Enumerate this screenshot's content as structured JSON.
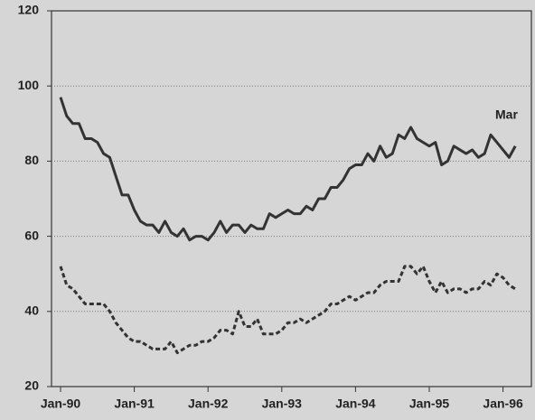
{
  "chart_data": {
    "type": "line",
    "categories": [
      "Jan-90",
      null,
      null,
      null,
      null,
      null,
      null,
      null,
      null,
      null,
      null,
      null,
      "Jan-91",
      null,
      null,
      null,
      null,
      null,
      null,
      null,
      null,
      null,
      null,
      null,
      "Jan-92",
      null,
      null,
      null,
      null,
      null,
      null,
      null,
      null,
      null,
      null,
      null,
      "Jan-93",
      null,
      null,
      null,
      null,
      null,
      null,
      null,
      null,
      null,
      null,
      null,
      "Jan-94",
      null,
      null,
      null,
      null,
      null,
      null,
      null,
      null,
      null,
      null,
      null,
      "Jan-95",
      null,
      null,
      null,
      null,
      null,
      null,
      null,
      null,
      null,
      null,
      null,
      "Jan-96",
      null,
      null
    ],
    "series": [
      {
        "color": "#333333",
        "style": "solid",
        "values": [
          97,
          92,
          90,
          90,
          86,
          86,
          85,
          82,
          81,
          76,
          71,
          71,
          67,
          64,
          63,
          63,
          61,
          64,
          61,
          60,
          62,
          59,
          60,
          60,
          59,
          61,
          64,
          61,
          63,
          63,
          61,
          63,
          62,
          62,
          66,
          65,
          66,
          67,
          66,
          66,
          68,
          67,
          70,
          70,
          73,
          73,
          75,
          78,
          79,
          79,
          82,
          80,
          84,
          81,
          82,
          87,
          86,
          89,
          86,
          85,
          84,
          85,
          79,
          80,
          84,
          83,
          82,
          83,
          81,
          82,
          87,
          85,
          83,
          81,
          84
        ]
      },
      {
        "color": "#333333",
        "style": "dashed",
        "values": [
          52,
          47,
          46,
          44,
          42,
          42,
          42,
          42,
          40,
          37,
          35,
          33,
          32,
          32,
          31,
          30,
          30,
          30,
          32,
          29,
          30,
          31,
          31,
          32,
          32,
          33,
          35,
          35,
          34,
          40,
          36,
          36,
          38,
          34,
          34,
          34,
          35,
          37,
          37,
          38,
          37,
          38,
          39,
          40,
          42,
          42,
          43,
          44,
          43,
          44,
          45,
          45,
          47,
          48,
          48,
          48,
          52,
          52,
          50,
          52,
          48,
          45,
          48,
          45,
          46,
          46,
          45,
          46,
          46,
          48,
          47,
          50,
          49,
          47,
          46
        ]
      }
    ],
    "annotation": "Mar",
    "ylim": [
      20,
      120
    ],
    "yticks": [
      20,
      40,
      60,
      80,
      100,
      120
    ],
    "grid": true
  }
}
